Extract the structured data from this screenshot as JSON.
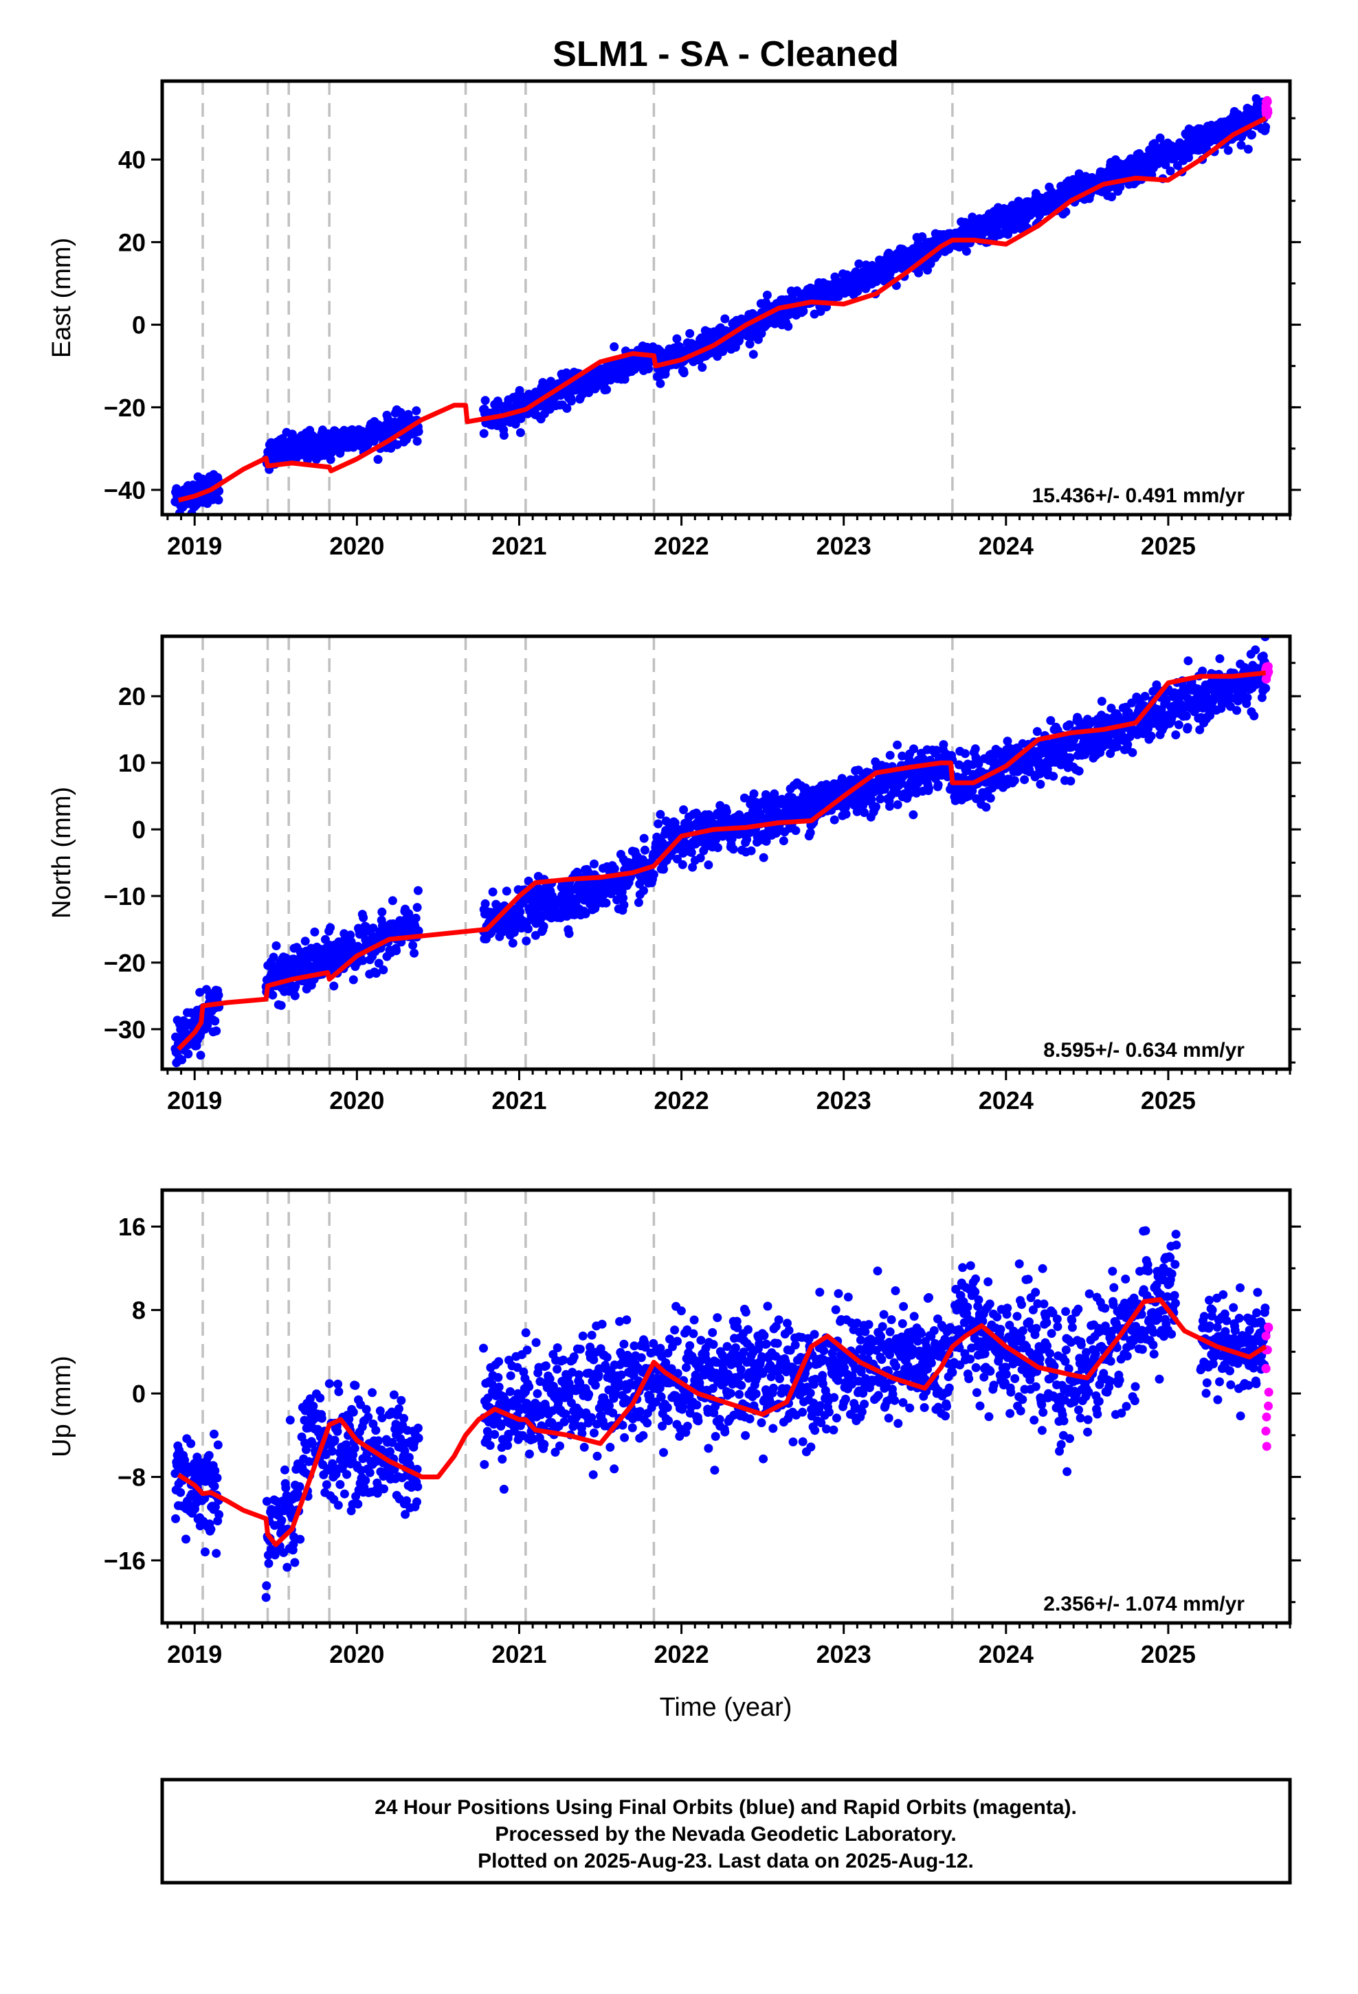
{
  "figure": {
    "title": "SLM1  - SA - Cleaned",
    "xlabel": "Time (year)",
    "footer": [
      "24 Hour Positions Using Final Orbits (blue) and Rapid Orbits (magenta).",
      "Processed by the Nevada Geodetic Laboratory.",
      "Plotted on 2025-Aug-23. Last data on 2025-Aug-12."
    ]
  },
  "colors": {
    "final_points": "#0000ff",
    "rapid_points": "#ff00ff",
    "model_line": "#ff0000",
    "event_line": "#c0c0c0",
    "axes": "#000000"
  },
  "chart_data": [
    {
      "type": "scatter",
      "ylabel": "East (mm)",
      "rate_label": "15.436+/- 0.491 mm/yr",
      "xlim": [
        2018.8,
        2025.75
      ],
      "ylim": [
        -46,
        59
      ],
      "xticks": [
        2019,
        2020,
        2021,
        2022,
        2023,
        2024,
        2025
      ],
      "yticks": [
        -40,
        -20,
        0,
        20,
        40
      ],
      "ytick_labels": [
        "−40",
        "−20",
        "0",
        "20",
        "40"
      ],
      "grid": false,
      "event_lines": [
        2019.05,
        2019.45,
        2019.58,
        2019.83,
        2020.67,
        2021.04,
        2021.83,
        2023.67
      ],
      "model": {
        "name": "fit",
        "x": [
          2018.9,
          2019.0,
          2019.1,
          2019.2,
          2019.3,
          2019.44,
          2019.45,
          2019.6,
          2019.83,
          2019.84,
          2020.0,
          2020.2,
          2020.4,
          2020.6,
          2020.67,
          2020.68,
          2020.9,
          2021.04,
          2021.1,
          2021.3,
          2021.5,
          2021.7,
          2021.83,
          2021.84,
          2022.0,
          2022.2,
          2022.4,
          2022.6,
          2022.8,
          2023.0,
          2023.2,
          2023.4,
          2023.6,
          2023.67,
          2023.8,
          2024.0,
          2024.2,
          2024.4,
          2024.6,
          2024.8,
          2025.0,
          2025.2,
          2025.4,
          2025.6
        ],
        "y": [
          -42.5,
          -41.5,
          -40,
          -37.5,
          -35,
          -32.3,
          -34.2,
          -33.5,
          -34.5,
          -35.4,
          -32.5,
          -28,
          -23,
          -19.5,
          -19.5,
          -23.5,
          -22,
          -20.5,
          -19,
          -14,
          -9,
          -7,
          -7.5,
          -10,
          -8.5,
          -5,
          0,
          4,
          5.5,
          5,
          7.5,
          13,
          19,
          20.5,
          20.5,
          19.5,
          24,
          30,
          34,
          35.5,
          35,
          40,
          46,
          50
        ]
      },
      "final_points": {
        "segments": [
          {
            "x0": 2018.88,
            "x1": 2019.15,
            "y0": -42.3,
            "y1": -38.8,
            "scatter": 1.8
          },
          {
            "x0": 2019.44,
            "x1": 2020.38,
            "y0": -31.5,
            "y1": -24.5,
            "scatter": 1.8
          },
          {
            "x0": 2020.78,
            "x1": 2021.83,
            "y0": -23.5,
            "y1": -7.5,
            "scatter": 1.8
          },
          {
            "x0": 2021.84,
            "x1": 2023.67,
            "y0": -10,
            "y1": 20.5,
            "scatter": 1.8
          },
          {
            "x0": 2023.68,
            "x1": 2025.6,
            "y0": 20,
            "y1": 51,
            "scatter": 1.8
          }
        ]
      },
      "rapid_points": {
        "x0": 2025.6,
        "x1": 2025.62,
        "y0": 49.5,
        "y1": 55,
        "count": 10
      }
    },
    {
      "type": "scatter",
      "ylabel": "North (mm)",
      "rate_label": "8.595+/- 0.634 mm/yr",
      "xlim": [
        2018.8,
        2025.75
      ],
      "ylim": [
        -36,
        29
      ],
      "xticks": [
        2019,
        2020,
        2021,
        2022,
        2023,
        2024,
        2025
      ],
      "yticks": [
        -30,
        -20,
        -10,
        0,
        10,
        20
      ],
      "ytick_labels": [
        "−30",
        "−20",
        "−10",
        "0",
        "10",
        "20"
      ],
      "grid": false,
      "event_lines": [
        2019.05,
        2019.45,
        2019.58,
        2019.83,
        2020.67,
        2021.04,
        2021.83,
        2023.67
      ],
      "model": {
        "name": "fit",
        "x": [
          2018.9,
          2019.0,
          2019.04,
          2019.05,
          2019.2,
          2019.44,
          2019.45,
          2019.6,
          2019.82,
          2019.83,
          2020.0,
          2020.2,
          2020.4,
          2020.6,
          2020.8,
          2021.0,
          2021.1,
          2021.3,
          2021.5,
          2021.7,
          2021.83,
          2022.0,
          2022.2,
          2022.4,
          2022.6,
          2022.8,
          2023.0,
          2023.2,
          2023.4,
          2023.6,
          2023.66,
          2023.67,
          2023.8,
          2024.0,
          2024.2,
          2024.4,
          2024.6,
          2024.8,
          2025.0,
          2025.2,
          2025.4,
          2025.6
        ],
        "y": [
          -33,
          -30.5,
          -29,
          -26.5,
          -26,
          -25.5,
          -23.5,
          -22.5,
          -21.5,
          -22.5,
          -19,
          -16.5,
          -16,
          -15.5,
          -15,
          -10,
          -8,
          -7.5,
          -7.2,
          -6.5,
          -5.5,
          -1,
          0,
          0.3,
          1,
          1.3,
          5,
          8.5,
          9.3,
          10,
          10,
          7,
          7,
          9.5,
          13.5,
          14.5,
          15,
          16,
          22,
          23,
          23,
          23.5
        ]
      },
      "final_points": {
        "segments": [
          {
            "x0": 2018.88,
            "x1": 2019.15,
            "y0": -33,
            "y1": -25.5,
            "scatter": 1.8
          },
          {
            "x0": 2019.44,
            "x1": 2020.38,
            "y0": -23,
            "y1": -14.5,
            "scatter": 1.8
          },
          {
            "x0": 2020.78,
            "x1": 2021.83,
            "y0": -14.5,
            "y1": -6,
            "scatter": 1.8
          },
          {
            "x0": 2021.84,
            "x1": 2023.67,
            "y0": -3,
            "y1": 10,
            "scatter": 1.8
          },
          {
            "x0": 2023.68,
            "x1": 2025.6,
            "y0": 6.5,
            "y1": 23,
            "scatter": 1.8
          }
        ]
      },
      "rapid_points": {
        "x0": 2025.6,
        "x1": 2025.62,
        "y0": 22.5,
        "y1": 25,
        "count": 10
      }
    },
    {
      "type": "scatter",
      "ylabel": "Up (mm)",
      "rate_label": "2.356+/- 1.074 mm/yr",
      "xlim": [
        2018.8,
        2025.75
      ],
      "ylim": [
        -22,
        19.5
      ],
      "xticks": [
        2019,
        2020,
        2021,
        2022,
        2023,
        2024,
        2025
      ],
      "yticks": [
        -16,
        -8,
        0,
        8,
        16
      ],
      "ytick_labels": [
        "−16",
        "−8",
        "0",
        "8",
        "16"
      ],
      "grid": false,
      "event_lines": [
        2019.05,
        2019.45,
        2019.58,
        2019.83,
        2020.67,
        2021.04,
        2021.83,
        2023.67
      ],
      "model": {
        "name": "fit",
        "x": [
          2018.9,
          2019.0,
          2019.05,
          2019.1,
          2019.2,
          2019.3,
          2019.44,
          2019.45,
          2019.5,
          2019.6,
          2019.75,
          2019.83,
          2019.9,
          2020.0,
          2020.2,
          2020.4,
          2020.5,
          2020.6,
          2020.67,
          2020.75,
          2020.85,
          2021.0,
          2021.04,
          2021.1,
          2021.3,
          2021.5,
          2021.7,
          2021.83,
          2021.9,
          2022.1,
          2022.3,
          2022.5,
          2022.65,
          2022.8,
          2022.9,
          2023.1,
          2023.3,
          2023.5,
          2023.6,
          2023.67,
          2023.75,
          2023.85,
          2024.0,
          2024.2,
          2024.4,
          2024.5,
          2024.7,
          2024.85,
          2024.95,
          2025.1,
          2025.3,
          2025.5,
          2025.6
        ],
        "y": [
          -7.8,
          -8.8,
          -9.6,
          -9.5,
          -10.3,
          -11.2,
          -12,
          -13.5,
          -14.5,
          -13,
          -6.5,
          -3,
          -2.5,
          -4.5,
          -6.5,
          -8,
          -8,
          -6,
          -4,
          -2.5,
          -1.5,
          -2.5,
          -2.5,
          -3.5,
          -4,
          -4.8,
          -1,
          3,
          2,
          0,
          -1,
          -2,
          -0.8,
          4.5,
          5.5,
          3,
          1.5,
          0.5,
          2.5,
          4.5,
          5.5,
          6.5,
          4.5,
          2.5,
          1.8,
          1.5,
          5.5,
          8.8,
          9,
          6,
          4.5,
          3.5,
          4.5
        ]
      },
      "final_points": {
        "segments": [
          {
            "x0": 2018.88,
            "x1": 2019.15,
            "y0": -8.5,
            "y1": -9.5,
            "scatter": 2.6
          },
          {
            "x0": 2019.44,
            "x1": 2019.65,
            "y0": -14,
            "y1": -11,
            "scatter": 2.6
          },
          {
            "x0": 2019.66,
            "x1": 2020.38,
            "y0": -5,
            "y1": -6,
            "scatter": 2.6
          },
          {
            "x0": 2020.78,
            "x1": 2021.83,
            "y0": -1.5,
            "y1": 1,
            "scatter": 2.6
          },
          {
            "x0": 2021.84,
            "x1": 2023.67,
            "y0": 1,
            "y1": 3,
            "scatter": 2.8
          },
          {
            "x0": 2023.68,
            "x1": 2024.3,
            "y0": 7,
            "y1": 2.5,
            "scatter": 2.8
          },
          {
            "x0": 2024.31,
            "x1": 2025.05,
            "y0": 0,
            "y1": 10,
            "scatter": 3
          },
          {
            "x0": 2025.2,
            "x1": 2025.6,
            "y0": 4.5,
            "y1": 4.5,
            "scatter": 2.2
          }
        ]
      },
      "rapid_points": {
        "x0": 2025.6,
        "x1": 2025.62,
        "y0": -5.5,
        "y1": 6.5,
        "count": 12
      }
    }
  ]
}
